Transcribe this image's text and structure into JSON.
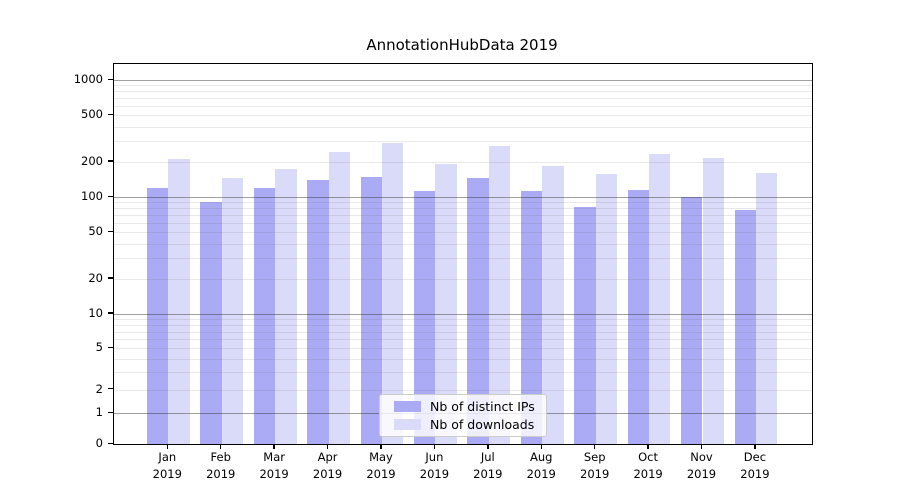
{
  "title": "AnnotationHubData 2019",
  "chart_data": {
    "type": "bar",
    "title": "AnnotationHubData 2019",
    "categories": [
      "Jan 2019",
      "Feb 2019",
      "Mar 2019",
      "Apr 2019",
      "May 2019",
      "Jun 2019",
      "Jul 2019",
      "Aug 2019",
      "Sep 2019",
      "Oct 2019",
      "Nov 2019",
      "Dec 2019"
    ],
    "x_tick_month": [
      "Jan",
      "Feb",
      "Mar",
      "Apr",
      "May",
      "Jun",
      "Jul",
      "Aug",
      "Sep",
      "Oct",
      "Nov",
      "Dec"
    ],
    "x_tick_year": "2019",
    "series": [
      {
        "name": "Nb of distinct IPs",
        "color": "#aaaaf5",
        "values": [
          120,
          90,
          120,
          139,
          149,
          112,
          146,
          113,
          83,
          114,
          101,
          77
        ]
      },
      {
        "name": "Nb of downloads",
        "color": "#dadaf9",
        "values": [
          210,
          145,
          175,
          243,
          288,
          193,
          275,
          185,
          158,
          232,
          217,
          160
        ]
      }
    ],
    "xlabel": "",
    "ylabel": "",
    "y_ticks": [
      1000,
      500,
      200,
      100,
      50,
      20,
      10,
      5,
      2,
      1,
      0
    ],
    "y_scale": "asinh (log-like with 0 baseline)",
    "ylim": [
      0,
      1440
    ],
    "grid": "horizontal; light minor lines each 2-9 per decade, gray major lines at 1, 10, 100, 1000",
    "legend_position": "lower center, inside plot"
  },
  "colors": {
    "bar_distinct_ips": "#aaaaf5",
    "bar_downloads": "#dadaf9",
    "axis": "#000000",
    "grid_major": "#a3a3a3",
    "grid_minor": "#ededed",
    "background": "#ffffff",
    "legend_border": "#cccccc"
  }
}
